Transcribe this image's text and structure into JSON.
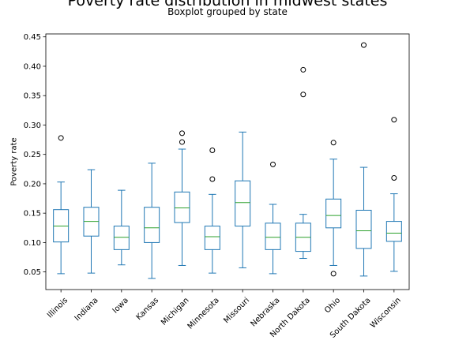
{
  "chart_data": {
    "type": "boxplot",
    "title": "Poverty rate distribution in midwest states",
    "subtitle": "Boxplot grouped by state",
    "xlabel": "",
    "ylabel": "Poverty rate",
    "ylim": [
      0.02,
      0.455
    ],
    "yticks": [
      "0.05",
      "0.10",
      "0.15",
      "0.20",
      "0.25",
      "0.30",
      "0.35",
      "0.40",
      "0.45"
    ],
    "grid": false,
    "colors": {
      "box": "#1f77b4",
      "median": "#2ca02c",
      "flier": "#000000"
    },
    "categories": [
      "Illinois",
      "Indiana",
      "Iowa",
      "Kansas",
      "Michigan",
      "Minnesota",
      "Missouri",
      "Nebraska",
      "North Dakota",
      "Ohio",
      "South Dakota",
      "Wisconsin"
    ],
    "boxes": [
      {
        "whislo": 0.047,
        "q1": 0.101,
        "med": 0.128,
        "q3": 0.156,
        "whishi": 0.203,
        "fliers": [
          0.278
        ]
      },
      {
        "whislo": 0.048,
        "q1": 0.111,
        "med": 0.136,
        "q3": 0.16,
        "whishi": 0.224,
        "fliers": []
      },
      {
        "whislo": 0.062,
        "q1": 0.088,
        "med": 0.109,
        "q3": 0.128,
        "whishi": 0.189,
        "fliers": []
      },
      {
        "whislo": 0.039,
        "q1": 0.1,
        "med": 0.125,
        "q3": 0.16,
        "whishi": 0.235,
        "fliers": []
      },
      {
        "whislo": 0.061,
        "q1": 0.134,
        "med": 0.159,
        "q3": 0.186,
        "whishi": 0.259,
        "fliers": [
          0.271,
          0.286
        ]
      },
      {
        "whislo": 0.048,
        "q1": 0.088,
        "med": 0.11,
        "q3": 0.128,
        "whishi": 0.182,
        "fliers": [
          0.208,
          0.257
        ]
      },
      {
        "whislo": 0.057,
        "q1": 0.128,
        "med": 0.168,
        "q3": 0.205,
        "whishi": 0.288,
        "fliers": []
      },
      {
        "whislo": 0.047,
        "q1": 0.088,
        "med": 0.109,
        "q3": 0.133,
        "whishi": 0.165,
        "fliers": [
          0.233
        ]
      },
      {
        "whislo": 0.073,
        "q1": 0.085,
        "med": 0.109,
        "q3": 0.133,
        "whishi": 0.148,
        "fliers": [
          0.352,
          0.394
        ]
      },
      {
        "whislo": 0.061,
        "q1": 0.125,
        "med": 0.146,
        "q3": 0.174,
        "whishi": 0.242,
        "fliers": [
          0.047,
          0.27
        ]
      },
      {
        "whislo": 0.043,
        "q1": 0.09,
        "med": 0.12,
        "q3": 0.155,
        "whishi": 0.228,
        "fliers": [
          0.436
        ]
      },
      {
        "whislo": 0.051,
        "q1": 0.102,
        "med": 0.116,
        "q3": 0.136,
        "whishi": 0.183,
        "fliers": [
          0.21,
          0.309
        ]
      }
    ]
  }
}
